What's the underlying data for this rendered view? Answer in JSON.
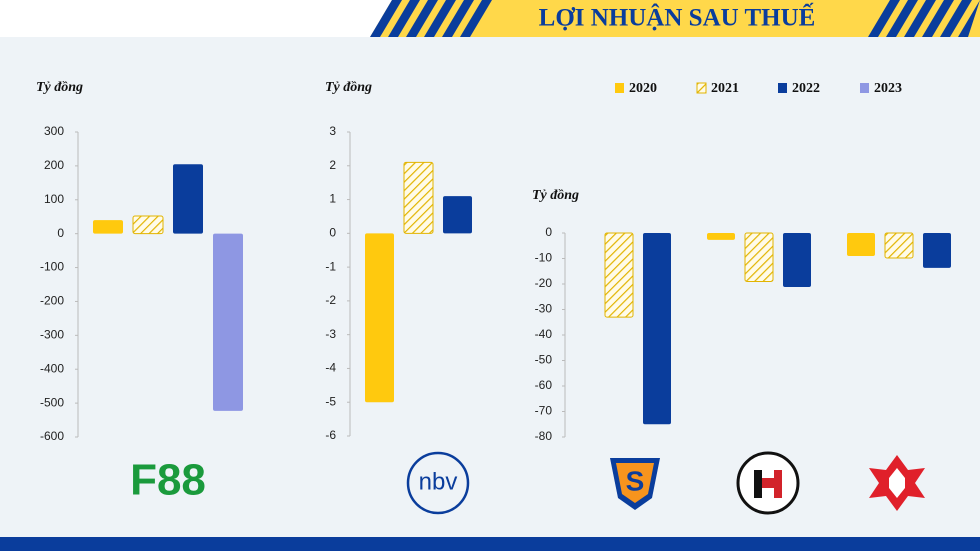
{
  "title": "LỢI NHUẬN SAU THUẾ",
  "legend": [
    {
      "name": "2020",
      "color": "#ffc90e",
      "hatch": false
    },
    {
      "name": "2021",
      "color": "#e2b400",
      "hatch": true
    },
    {
      "name": "2022",
      "color": "#0a3d9c",
      "hatch": false
    },
    {
      "name": "2023",
      "color": "#8e97e3",
      "hatch": false
    }
  ],
  "chart_data": [
    {
      "type": "bar",
      "y_label": "Tỷ đồng",
      "categories": [
        "F88"
      ],
      "values": [
        [
          40,
          52,
          205,
          -523
        ]
      ],
      "ylim": [
        -600,
        300
      ],
      "yticks": [
        -600,
        -500,
        -400,
        -300,
        -200,
        -100,
        0,
        100,
        200,
        300
      ]
    },
    {
      "type": "bar",
      "y_label": "Tỷ đồng",
      "categories": [
        "nbv"
      ],
      "values": [
        [
          -5.0,
          2.1,
          1.1
        ]
      ],
      "ylim": [
        -6,
        3
      ],
      "yticks": [
        -6,
        -5,
        -4,
        -3,
        -2,
        -1,
        0,
        1,
        2,
        3
      ]
    },
    {
      "type": "bar",
      "y_label": "Tỷ đồng",
      "categories": [
        null,
        null,
        null
      ],
      "values": [
        [
          null,
          -33,
          -75
        ],
        [
          -2.7,
          -19,
          -21.2
        ],
        [
          -9,
          -9.8,
          -13.7
        ]
      ],
      "ylim": [
        -80,
        0
      ],
      "yticks": [
        -80,
        -70,
        -60,
        -50,
        -40,
        -30,
        -20,
        -10,
        0
      ]
    }
  ]
}
